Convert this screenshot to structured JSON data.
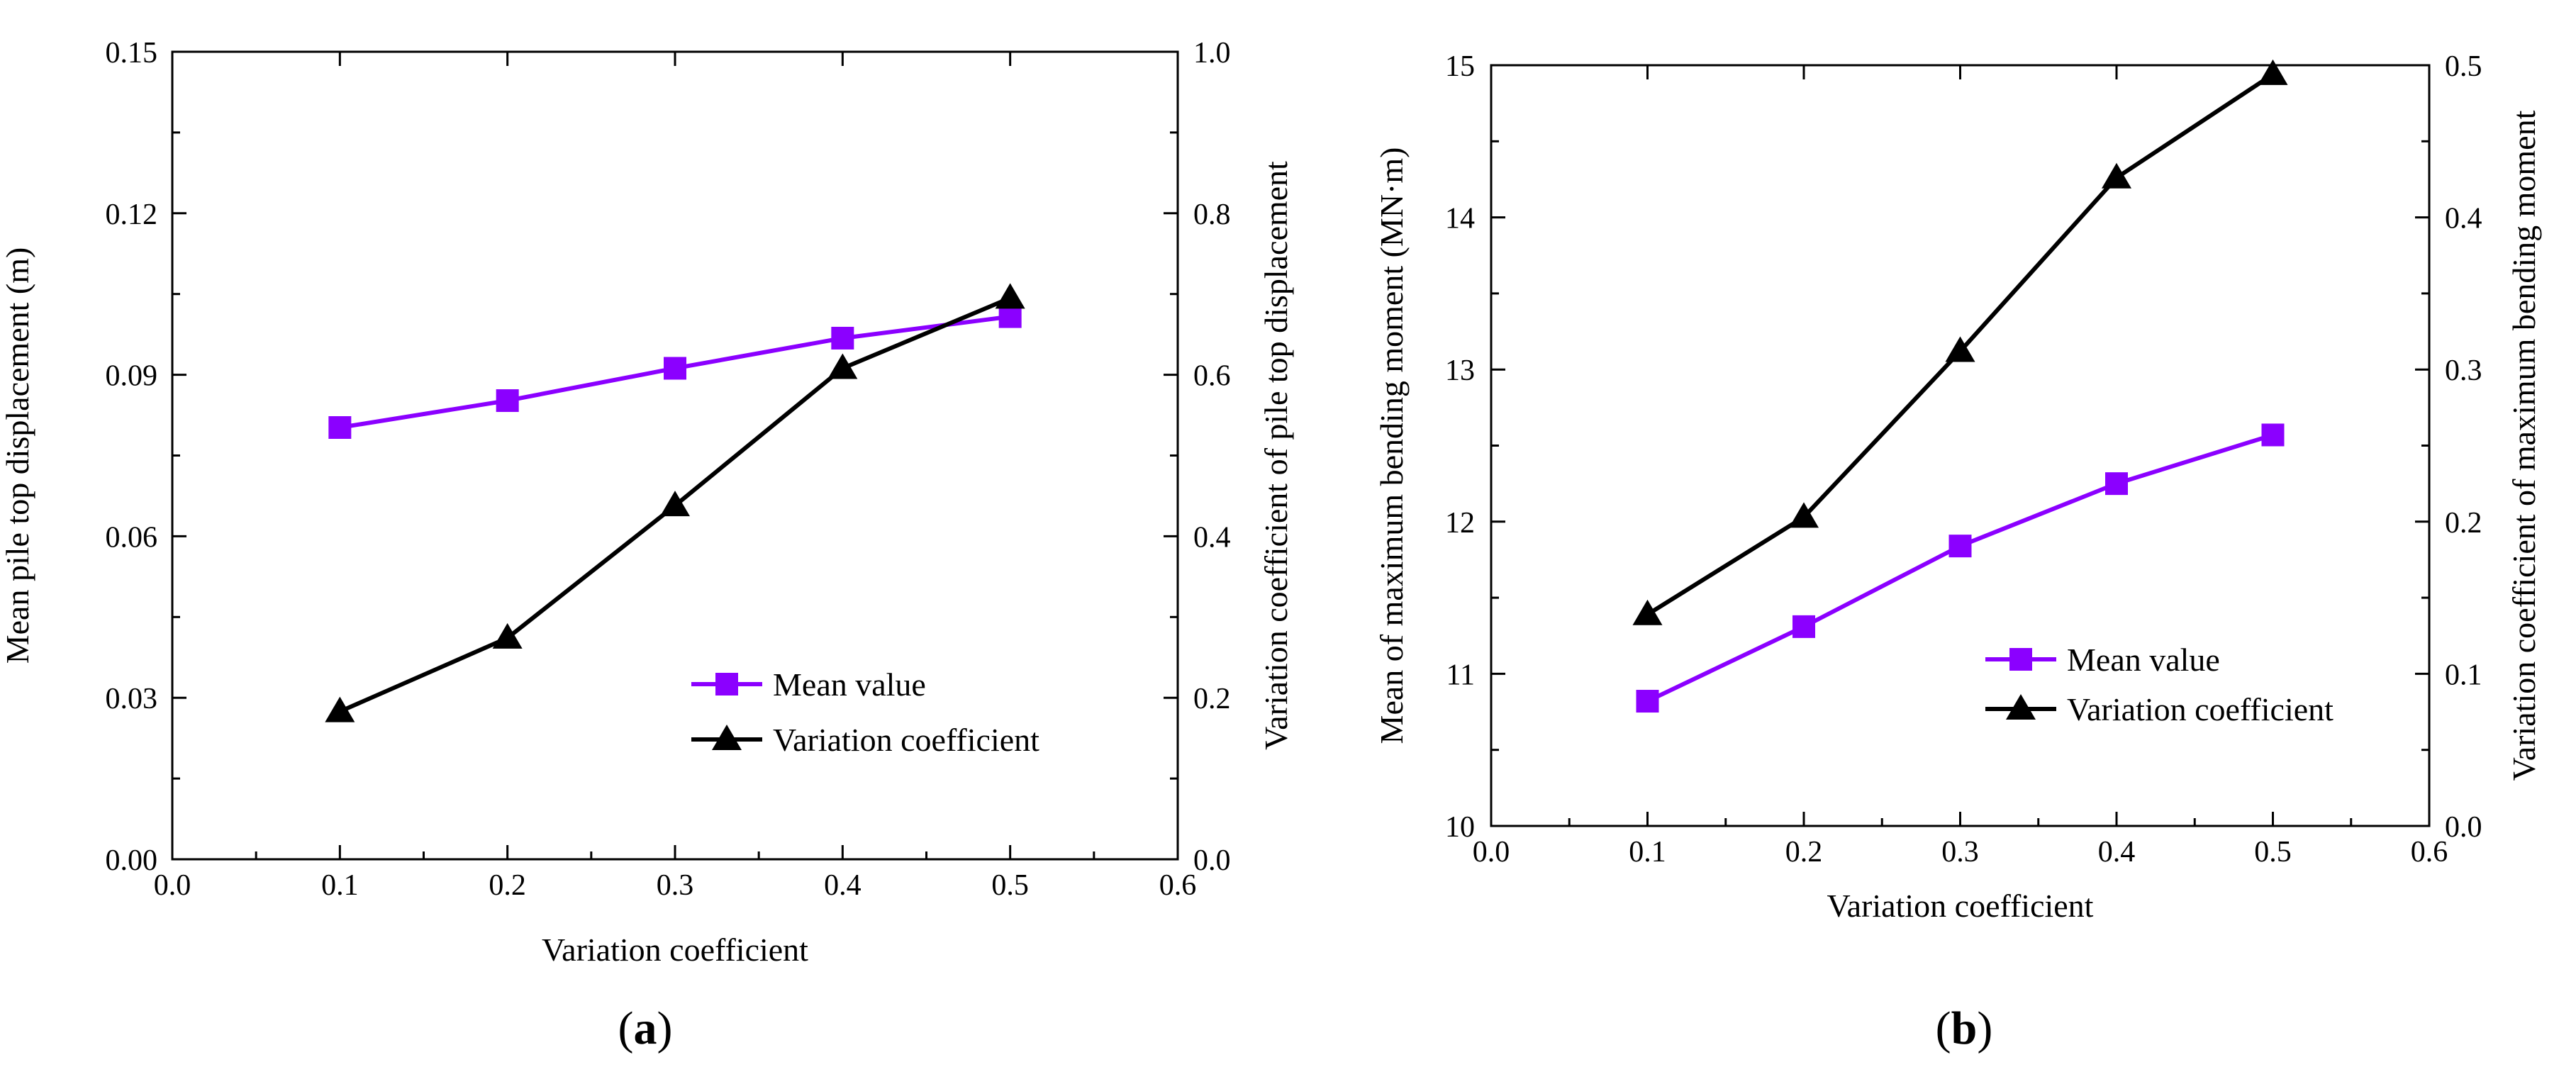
{
  "colors": {
    "mean": "#8B00FF",
    "variation": "#000000",
    "axis": "#000000"
  },
  "chart_data": [
    {
      "type": "line",
      "panel": "a",
      "panel_label": {
        "open": "(",
        "letter": "a",
        "close": ")"
      },
      "xlabel": "Variation coefficient",
      "ylabel_left": "Mean pile top displacement (m)",
      "ylabel_right": "Variation coefficient of pile top displacement",
      "xlim": [
        0.0,
        0.6
      ],
      "ylim_left": [
        0.0,
        0.15
      ],
      "ylim_right": [
        0.0,
        1.0
      ],
      "x_ticks": [
        "0.0",
        "0.1",
        "0.2",
        "0.3",
        "0.4",
        "0.5",
        "0.6"
      ],
      "y_left_ticks": [
        "0.00",
        "0.03",
        "0.06",
        "0.09",
        "0.12",
        "0.15"
      ],
      "y_right_ticks": [
        "0.0",
        "0.2",
        "0.4",
        "0.6",
        "0.8",
        "1.0"
      ],
      "legend_position": "lower-right",
      "series": [
        {
          "name": "Mean value",
          "axis": "left",
          "marker": "square",
          "x": [
            0.1,
            0.2,
            0.3,
            0.4,
            0.5
          ],
          "values": [
            0.0802,
            0.0852,
            0.0912,
            0.0968,
            0.1008
          ]
        },
        {
          "name": "Variation coefficient",
          "axis": "right",
          "marker": "triangle",
          "x": [
            0.1,
            0.2,
            0.3,
            0.4,
            0.5
          ],
          "values": [
            0.183,
            0.274,
            0.438,
            0.608,
            0.695
          ]
        }
      ]
    },
    {
      "type": "line",
      "panel": "b",
      "panel_label": {
        "open": "(",
        "letter": "b",
        "close": ")"
      },
      "xlabel": "Variation coefficient",
      "ylabel_left": "Mean of maximum bending moment (MN·m)",
      "ylabel_right": "Variation coefficient of maximum bending moment",
      "xlim": [
        0.0,
        0.6
      ],
      "ylim_left": [
        10,
        15
      ],
      "ylim_right": [
        0.0,
        0.5
      ],
      "x_ticks": [
        "0.0",
        "0.1",
        "0.2",
        "0.3",
        "0.4",
        "0.5",
        "0.6"
      ],
      "y_left_ticks": [
        "10",
        "11",
        "12",
        "13",
        "14",
        "15"
      ],
      "y_right_ticks": [
        "0.0",
        "0.1",
        "0.2",
        "0.3",
        "0.4",
        "0.5"
      ],
      "legend_position": "lower-right",
      "series": [
        {
          "name": "Mean value",
          "axis": "left",
          "marker": "square",
          "x": [
            0.1,
            0.2,
            0.3,
            0.4,
            0.5
          ],
          "values": [
            10.82,
            11.31,
            11.84,
            12.25,
            12.57
          ]
        },
        {
          "name": "Variation coefficient",
          "axis": "right",
          "marker": "triangle",
          "x": [
            0.1,
            0.2,
            0.3,
            0.4,
            0.5
          ],
          "values": [
            0.139,
            0.203,
            0.312,
            0.426,
            0.494
          ]
        }
      ]
    }
  ]
}
